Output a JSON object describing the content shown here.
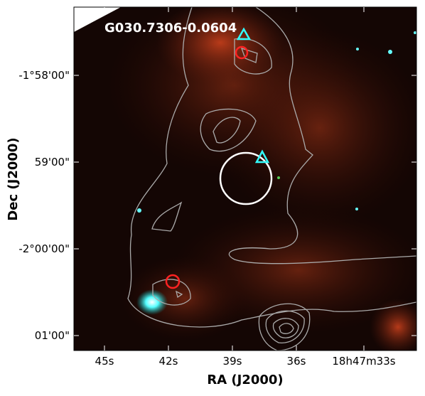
{
  "figure": {
    "title": "G030.7306-0.0604",
    "x_axis": {
      "label": "RA (J2000)",
      "ticks": [
        "45s",
        "42s",
        "39s",
        "36s",
        "18h47m33s"
      ]
    },
    "y_axis": {
      "label": "Dec (J2000)",
      "ticks": [
        "-1°58'00\"",
        "59'00\"",
        "-2°00'00\"",
        "01'00\""
      ]
    }
  }
}
